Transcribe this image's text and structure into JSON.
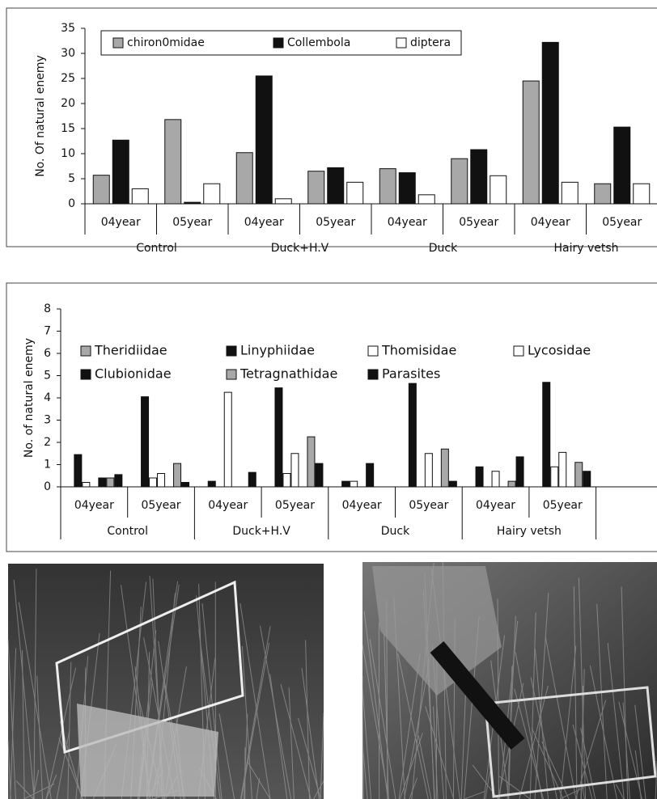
{
  "chart_data": [
    {
      "type": "bar",
      "y_label": "No. Of natural enemy",
      "categories": [
        "04year",
        "05year",
        "04year",
        "05year",
        "04year",
        "05year",
        "04year",
        "05year"
      ],
      "groups": [
        "Control",
        "Duck+H.V",
        "Duck",
        "Hairy vetsh"
      ],
      "ylim": [
        0,
        35
      ],
      "yticks": [
        0,
        5,
        10,
        15,
        20,
        25,
        30,
        35
      ],
      "series": [
        {
          "name": "chiron0midae",
          "color": "#a8a8a8",
          "values": [
            5.7,
            16.8,
            10.2,
            6.5,
            7,
            9,
            24.5,
            4
          ]
        },
        {
          "name": "Collembola",
          "color": "#111111",
          "values": [
            12.7,
            0.3,
            25.5,
            7.2,
            6.2,
            10.8,
            32.2,
            15.3
          ]
        },
        {
          "name": "diptera",
          "color": "#ffffff",
          "values": [
            3,
            4,
            1,
            4.3,
            1.8,
            5.6,
            4.3,
            4
          ]
        }
      ]
    },
    {
      "type": "bar",
      "y_label": "No. of natural enemy",
      "categories": [
        "04year",
        "05year",
        "04year",
        "05year",
        "04year",
        "05year",
        "04year",
        "05year"
      ],
      "groups": [
        "Control",
        "Duck+H.V",
        "Duck",
        "Hairy vetsh"
      ],
      "ylim": [
        0,
        8
      ],
      "yticks": [
        0,
        1,
        2,
        3,
        4,
        5,
        6,
        7,
        8
      ],
      "series": [
        {
          "name": "Theridiidae",
          "color": "#a8a8a8",
          "values": [
            0,
            0,
            0,
            0,
            0,
            0,
            0,
            0
          ]
        },
        {
          "name": "Linyphiidae",
          "color": "#111111",
          "values": [
            1.45,
            4.05,
            0.25,
            4.45,
            0.25,
            4.65,
            0.9,
            4.7
          ]
        },
        {
          "name": "Thomisidae",
          "color": "#ffffff",
          "values": [
            0.2,
            0.4,
            0,
            0.6,
            0.25,
            0,
            0,
            0.9
          ]
        },
        {
          "name": "Lycosidae",
          "color": "#ffffff",
          "values": [
            0,
            0.6,
            4.25,
            1.5,
            0,
            1.5,
            0.7,
            1.55
          ]
        },
        {
          "name": "Clubionidae",
          "color": "#111111",
          "values": [
            0.4,
            0,
            0,
            0,
            1.05,
            0,
            0,
            0
          ]
        },
        {
          "name": "Tetragnathidae",
          "color": "#a8a8a8",
          "values": [
            0.4,
            1.05,
            0,
            2.25,
            0,
            1.7,
            0.25,
            1.1
          ]
        },
        {
          "name": "Parasites",
          "color": "#111111",
          "values": [
            0.55,
            0.2,
            0.65,
            1.05,
            0,
            0.25,
            1.35,
            0.7
          ]
        }
      ]
    }
  ]
}
